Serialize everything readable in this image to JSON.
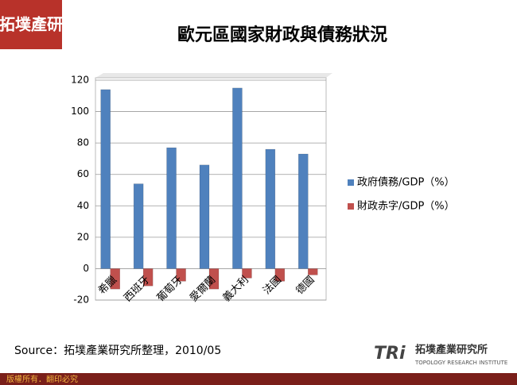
{
  "logo": {
    "text": "拓墣產研"
  },
  "chart_data": {
    "type": "bar",
    "title": "歐元區國家財政與債務狀況",
    "categories": [
      "希臘",
      "西班牙",
      "葡萄牙",
      "愛爾蘭",
      "義大利",
      "法國",
      "德國"
    ],
    "series": [
      {
        "name": "政府債務/GDP（%）",
        "color": "#4f81bd",
        "values": [
          114,
          54,
          77,
          66,
          115,
          76,
          73
        ]
      },
      {
        "name": "財政赤字/GDP（%）",
        "color": "#c0504d",
        "values": [
          -13,
          -11,
          -8,
          -13,
          -6,
          -8,
          -4
        ]
      }
    ],
    "ylim": [
      -20,
      120
    ],
    "yticks": [
      -20,
      0,
      20,
      40,
      60,
      80,
      100,
      120
    ],
    "grid": true,
    "legend": "right"
  },
  "source": "Source：拓墣產業研究所整理，2010/05",
  "footer": {
    "copyright": "版權所有．翻印必究",
    "brand": "TRi",
    "institute": "拓墣產業研究所",
    "institute_en": "TOPOLOGY RESEARCH INSTITUTE"
  }
}
